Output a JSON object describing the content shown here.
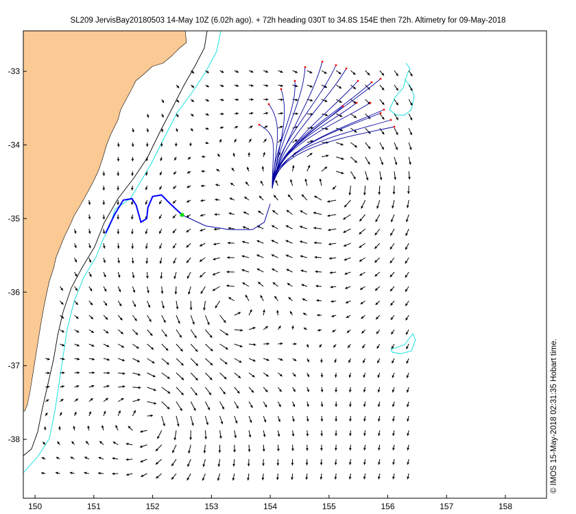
{
  "title": "SL209 JervisBay20180503 14-May 10Z (6.02h ago). + 72h heading 030T to 34.8S 154E then 72h. Altimetry for 09-May-2018",
  "timestamp": "© IMOS 15-May-2018 02:31:35 Hobart time.",
  "colors": {
    "land": "#fbc994",
    "coast_outline": "#000000",
    "isobath_1000m": "#000000",
    "isobath_200m": "#00dede",
    "eddy_contour": "#00dede",
    "current_arrows": "#000000",
    "glider_track": "#0000ff",
    "forecast_tracks": "#0000a0",
    "forecast_endpoints": "#ff0000",
    "glider_position": "#00dd00"
  },
  "axes": {
    "x_ticks": [
      "150",
      "151",
      "152",
      "153",
      "154",
      "155",
      "156",
      "157",
      "158"
    ],
    "y_ticks": [
      "-33",
      "-34",
      "-35",
      "-36",
      "-37",
      "-38"
    ],
    "xlim": [
      149.8,
      158.7
    ],
    "ylim": [
      -38.8,
      -32.45
    ]
  },
  "glider_track": [
    [
      151.2,
      -35.2
    ],
    [
      151.35,
      -34.95
    ],
    [
      151.5,
      -34.75
    ],
    [
      151.65,
      -34.73
    ],
    [
      151.72,
      -34.82
    ],
    [
      151.8,
      -35.05
    ],
    [
      151.9,
      -35.0
    ],
    [
      151.92,
      -34.85
    ],
    [
      152.0,
      -34.7
    ],
    [
      152.15,
      -34.68
    ],
    [
      152.3,
      -34.8
    ],
    [
      152.5,
      -34.95
    ]
  ],
  "forecast_path": [
    [
      152.5,
      -34.95
    ],
    [
      152.9,
      -35.1
    ],
    [
      153.3,
      -35.15
    ],
    [
      153.7,
      -35.15
    ],
    [
      153.9,
      -35.05
    ],
    [
      154.0,
      -34.8
    ]
  ],
  "glider_position": [
    152.5,
    -34.95
  ],
  "legend": []
}
